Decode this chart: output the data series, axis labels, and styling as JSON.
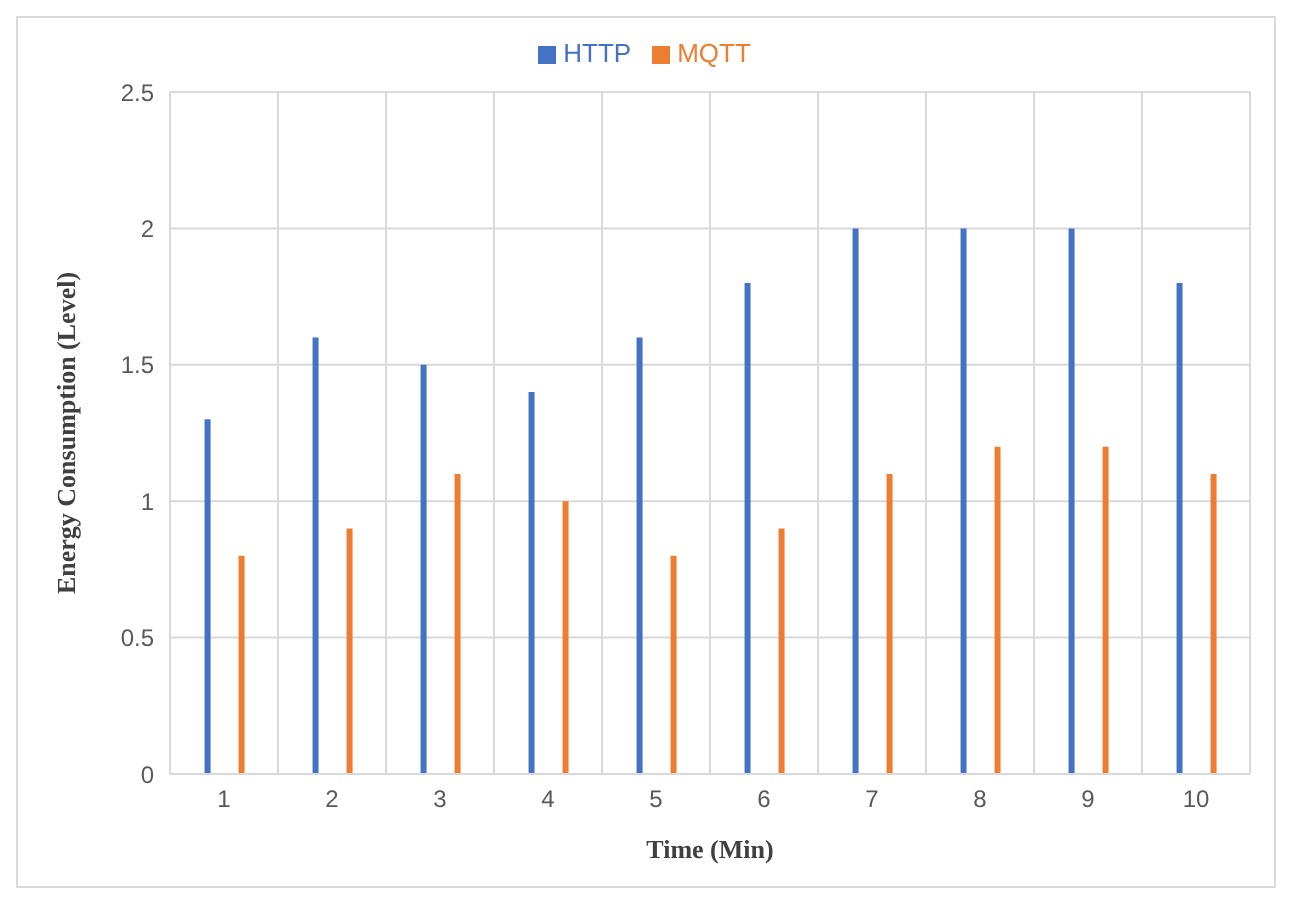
{
  "chart_data": {
    "type": "bar",
    "xlabel": "Time (Min)",
    "ylabel": "Energy Consumption (Level)",
    "categories": [
      "1",
      "2",
      "3",
      "4",
      "5",
      "6",
      "7",
      "8",
      "9",
      "10"
    ],
    "series": [
      {
        "name": "HTTP",
        "color": "#4472c4",
        "values": [
          1.3,
          1.6,
          1.5,
          1.4,
          1.6,
          1.8,
          2,
          2,
          2,
          1.8
        ]
      },
      {
        "name": "MQTT",
        "color": "#ed7d31",
        "values": [
          0.8,
          0.9,
          1.1,
          1.0,
          0.8,
          0.9,
          1.1,
          1.2,
          1.2,
          1.1
        ]
      }
    ],
    "ylim": [
      0,
      2.5
    ],
    "yticks": [
      0,
      0.5,
      1,
      1.5,
      2,
      2.5
    ],
    "grid": true,
    "legend": "top"
  }
}
